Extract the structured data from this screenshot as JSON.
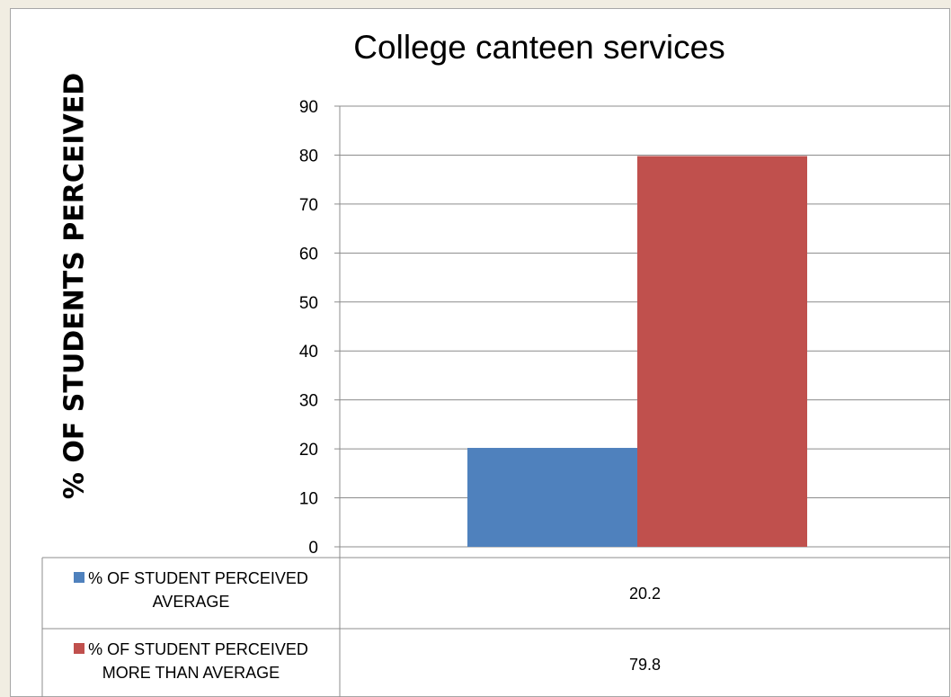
{
  "chart_data": {
    "type": "bar",
    "title": "College canteen services",
    "ylabel": "% OF STUDENTS PERCEIVED",
    "xlabel": "",
    "ylim": [
      0,
      90
    ],
    "yticks": [
      0,
      10,
      20,
      30,
      40,
      50,
      60,
      70,
      80,
      90
    ],
    "grid": true,
    "legend": "data-table",
    "categories": [
      ""
    ],
    "series": [
      {
        "name": "% OF STUDENT PERCEIVED AVERAGE",
        "name_lines": [
          "% OF STUDENT PERCEIVED",
          "AVERAGE"
        ],
        "values": [
          20.2
        ],
        "value_labels": [
          "20.2"
        ],
        "color": "#4f81bd"
      },
      {
        "name": "% OF STUDENT PERCEIVED MORE THAN AVERAGE",
        "name_lines": [
          "% OF STUDENT PERCEIVED",
          "MORE THAN AVERAGE"
        ],
        "values": [
          79.8
        ],
        "value_labels": [
          "79.8"
        ],
        "color": "#c0504d"
      }
    ]
  }
}
